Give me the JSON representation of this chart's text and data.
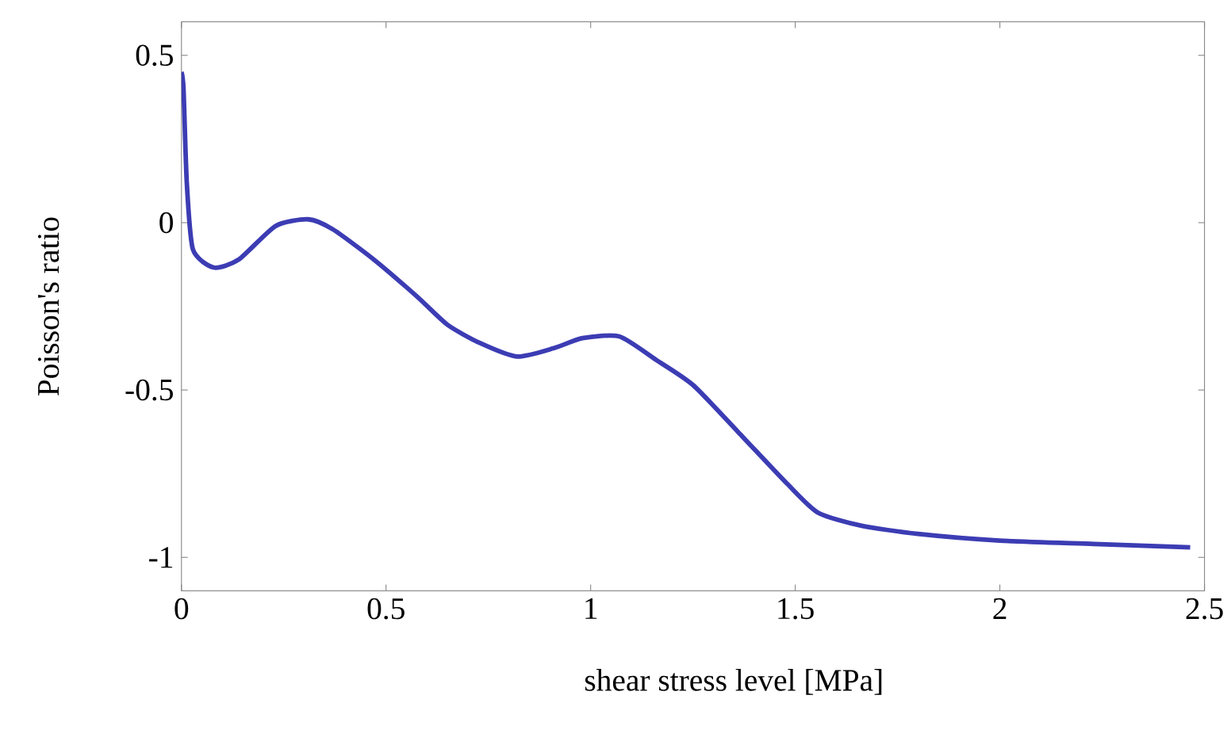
{
  "chart_data": {
    "type": "line",
    "xlabel": "shear stress level [MPa]",
    "ylabel": "Poisson's ratio",
    "color": "#3c3cb4",
    "x": [
      0.0,
      0.005,
      0.013,
      0.028,
      0.079,
      0.14,
      0.23,
      0.31,
      0.37,
      0.47,
      0.575,
      0.65,
      0.73,
      0.82,
      0.91,
      0.98,
      1.07,
      1.16,
      1.25,
      1.36,
      1.48,
      1.555,
      1.66,
      1.8,
      2.0,
      2.23,
      2.465
    ],
    "values": [
      0.45,
      0.4,
      0.12,
      -0.08,
      -0.134,
      -0.11,
      -0.01,
      0.01,
      -0.02,
      -0.11,
      -0.22,
      -0.305,
      -0.36,
      -0.4,
      -0.375,
      -0.345,
      -0.34,
      -0.41,
      -0.485,
      -0.625,
      -0.78,
      -0.866,
      -0.905,
      -0.93,
      -0.95,
      -0.96,
      -0.97
    ],
    "xlim": [
      0,
      2.5
    ],
    "ylim": [
      -1.1,
      0.6
    ],
    "xticks": [
      0,
      0.5,
      1,
      1.5,
      2,
      2.5
    ],
    "yticks": [
      -1,
      -0.5,
      0,
      0.5
    ]
  }
}
